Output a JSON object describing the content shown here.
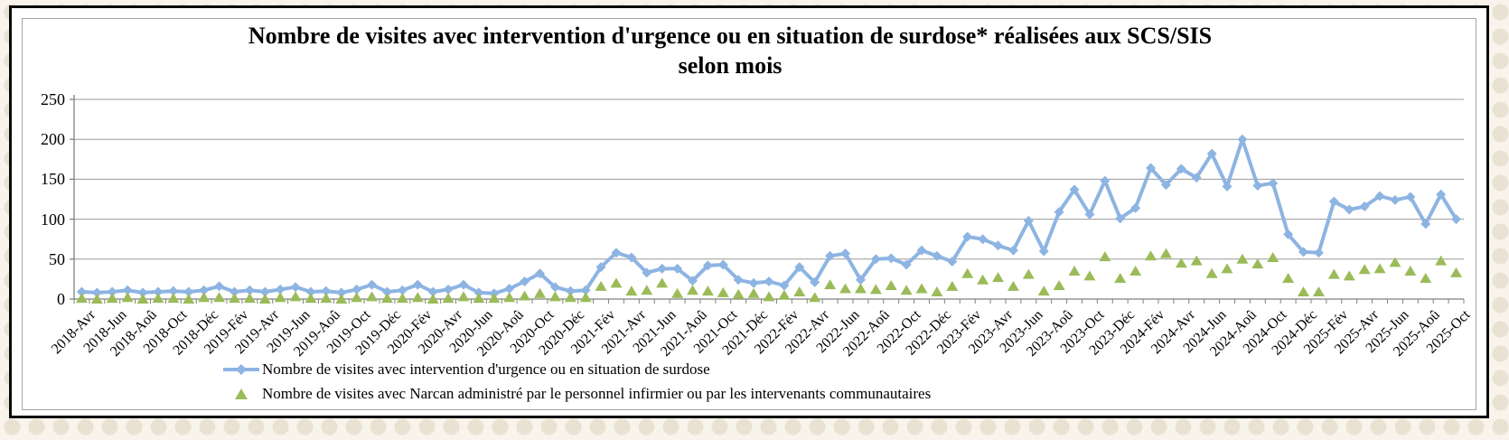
{
  "chart_data": {
    "type": "line",
    "title_line1": "Nombre de visites avec intervention d'urgence ou en situation de surdose* réalisées aux SCS/SIS",
    "title_line2": "selon mois",
    "grid": true,
    "legend_position": "bottom",
    "ylim": [
      0,
      250
    ],
    "y_ticks": [
      0,
      50,
      100,
      150,
      200,
      250
    ],
    "x_axis": {
      "total_points": 91,
      "label_at_every_nth_point": 2,
      "first_month": "2018-Avr",
      "last_month": "2025-Oct",
      "tick_labels": [
        "2018-Avr",
        "2018-Jun",
        "2018-Aoû",
        "2018-Oct",
        "2018-Déc",
        "2019-Fév",
        "2019-Avr",
        "2019-Jun",
        "2019-Aoû",
        "2019-Oct",
        "2019-Déc",
        "2020-Fév",
        "2020-Avr",
        "2020-Jun",
        "2020-Aoû",
        "2020-Oct",
        "2020-Déc",
        "2021-Fév",
        "2021-Avr",
        "2021-Jun",
        "2021-Aoû",
        "2021-Oct",
        "2021-Déc",
        "2022-Fév",
        "2022-Avr",
        "2022-Jun",
        "2022-Aoû",
        "2022-Oct",
        "2022-Déc",
        "2023-Fév",
        "2023-Avr",
        "2023-Jun",
        "2023-Aoû",
        "2023-Oct",
        "2023-Déc",
        "2024-Fév",
        "2024-Avr",
        "2024-Jun",
        "2024-Aoû",
        "2024-Oct",
        "2024-Déc",
        "2025-Fév",
        "2025-Avr",
        "2025-Jun",
        "2025-Aoû",
        "2025-Oct"
      ]
    },
    "series": [
      {
        "name": "Nombre de visites avec intervention d'urgence ou en situation de surdose",
        "marker": "diamond",
        "color": "#8db4e2",
        "has_line": true,
        "values": [
          9,
          8,
          9,
          11,
          8,
          9,
          10,
          9,
          11,
          16,
          9,
          11,
          9,
          12,
          15,
          9,
          10,
          8,
          12,
          18,
          9,
          11,
          18,
          9,
          12,
          18,
          8,
          7,
          13,
          22,
          32,
          15,
          10,
          11,
          40,
          58,
          52,
          33,
          38,
          38,
          23,
          42,
          43,
          24,
          20,
          22,
          17,
          40,
          21,
          54,
          57,
          24,
          50,
          51,
          43,
          61,
          54,
          47,
          78,
          75,
          67,
          61,
          98,
          60,
          109,
          137,
          106,
          148,
          101,
          114,
          164,
          143,
          163,
          152,
          182,
          141,
          200,
          142,
          145,
          81,
          59,
          58,
          122,
          112,
          116,
          129,
          124,
          128,
          94,
          131,
          100
        ]
      },
      {
        "name": "Nombre de visites avec Narcan administré par le personnel infirmier ou par les intervenants communautaires",
        "marker": "triangle",
        "color": "#9bbb59",
        "has_line": false,
        "values": [
          1,
          0,
          1,
          2,
          0,
          1,
          1,
          0,
          2,
          2,
          1,
          1,
          0,
          2,
          3,
          1,
          1,
          0,
          2,
          3,
          1,
          1,
          2,
          0,
          1,
          3,
          1,
          1,
          2,
          4,
          7,
          3,
          2,
          2,
          16,
          20,
          10,
          11,
          20,
          7,
          11,
          10,
          8,
          6,
          7,
          3,
          5,
          9,
          2,
          18,
          13,
          13,
          12,
          17,
          11,
          13,
          9,
          16,
          32,
          24,
          27,
          16,
          31,
          10,
          17,
          35,
          29,
          53,
          26,
          35,
          54,
          57,
          45,
          48,
          32,
          38,
          50,
          44,
          52,
          26,
          9,
          9,
          31,
          29,
          37,
          38,
          46,
          35,
          26,
          48,
          33
        ]
      }
    ],
    "colors": {
      "gridline": "#999999",
      "axis": "#808080",
      "chart_border": "#0a0a0a",
      "inner_border": "#a6a6a6",
      "background": "#ffffff"
    }
  }
}
